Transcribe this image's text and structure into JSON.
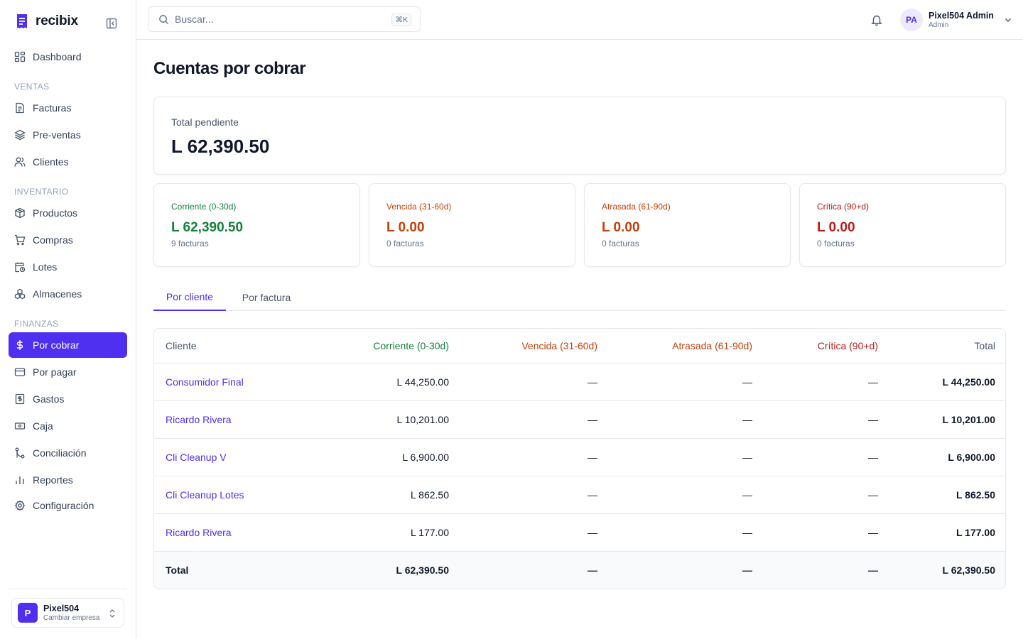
{
  "brand": {
    "name": "recibix"
  },
  "colors": {
    "accent": "#4f2ff0",
    "corriente": "#15803d",
    "vencida": "#c2410c",
    "atrasada": "#c2410c",
    "critica": "#b91c1c"
  },
  "sidebar": {
    "top_item": {
      "label": "Dashboard",
      "icon": "dashboard-icon"
    },
    "sections": {
      "ventas": "VENTAS",
      "inventario": "INVENTARIO",
      "finanzas": "FINANZAS"
    },
    "items": [
      {
        "label": "Facturas",
        "icon": "file-text-icon"
      },
      {
        "label": "Pre-ventas",
        "icon": "layers-icon"
      },
      {
        "label": "Clientes",
        "icon": "users-icon"
      },
      {
        "label": "Productos",
        "icon": "package-icon"
      },
      {
        "label": "Compras",
        "icon": "cart-icon"
      },
      {
        "label": "Lotes",
        "icon": "calendar-clock-icon"
      },
      {
        "label": "Almacenes",
        "icon": "boxes-icon"
      },
      {
        "label": "Por cobrar",
        "icon": "dollar-icon"
      },
      {
        "label": "Por pagar",
        "icon": "credit-card-icon"
      },
      {
        "label": "Gastos",
        "icon": "receipt-icon"
      },
      {
        "label": "Caja",
        "icon": "banknote-icon"
      },
      {
        "label": "Conciliación",
        "icon": "git-merge-icon"
      },
      {
        "label": "Reportes",
        "icon": "bar-chart-icon"
      },
      {
        "label": "Configuración",
        "icon": "gear-icon"
      }
    ],
    "company": {
      "initial": "P",
      "name": "Pixel504",
      "sub": "Cambiar empresa"
    }
  },
  "header": {
    "search_placeholder": "Buscar...",
    "shortcut": "⌘K",
    "user": {
      "initials": "PA",
      "name": "Pixel504 Admin",
      "role": "Admin"
    }
  },
  "page": {
    "title": "Cuentas por cobrar",
    "total": {
      "label": "Total pendiente",
      "value": "L 62,390.50"
    },
    "buckets": [
      {
        "label": "Corriente (0-30d)",
        "value": "L 62,390.50",
        "count": "9 facturas"
      },
      {
        "label": "Vencida (31-60d)",
        "value": "L 0.00",
        "count": "0 facturas"
      },
      {
        "label": "Atrasada (61-90d)",
        "value": "L 0.00",
        "count": "0 facturas"
      },
      {
        "label": "Crítica (90+d)",
        "value": "L 0.00",
        "count": "0 facturas"
      }
    ],
    "tabs": [
      {
        "label": "Por cliente",
        "active": true
      },
      {
        "label": "Por factura",
        "active": false
      }
    ],
    "table": {
      "headers": [
        "Cliente",
        "Corriente (0-30d)",
        "Vencida (31-60d)",
        "Atrasada (61-90d)",
        "Crítica (90+d)",
        "Total"
      ],
      "rows": [
        [
          "Consumidor Final",
          "L 44,250.00",
          "—",
          "—",
          "—",
          "L 44,250.00"
        ],
        [
          "Ricardo Rivera",
          "L 10,201.00",
          "—",
          "—",
          "—",
          "L 10,201.00"
        ],
        [
          "Cli Cleanup V",
          "L 6,900.00",
          "—",
          "—",
          "—",
          "L 6,900.00"
        ],
        [
          "Cli Cleanup Lotes",
          "L 862.50",
          "—",
          "—",
          "—",
          "L 862.50"
        ],
        [
          "Ricardo Rivera",
          "L 177.00",
          "—",
          "—",
          "—",
          "L 177.00"
        ]
      ],
      "footer": [
        "Total",
        "L 62,390.50",
        "—",
        "—",
        "—",
        "L 62,390.50"
      ]
    }
  }
}
